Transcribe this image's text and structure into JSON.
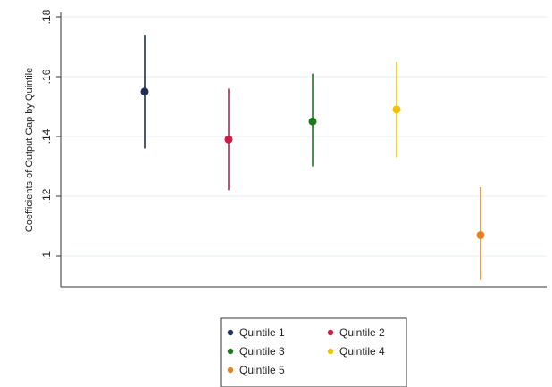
{
  "chart_data": {
    "type": "scatter",
    "title": "",
    "xlabel": "",
    "ylabel": "Coefficients of Output Gap by Quintile",
    "ylim": [
      0.09,
      0.18
    ],
    "yticks": [
      0.1,
      0.12,
      0.14,
      0.16,
      0.18
    ],
    "ytick_labels": [
      ".1",
      ".12",
      ".14",
      ".16",
      ".18"
    ],
    "grid": true,
    "legend_position": "bottom",
    "series": [
      {
        "name": "Quintile 1",
        "x": 1,
        "y": 0.155,
        "lower": 0.136,
        "upper": 0.174,
        "color": "#1f2d5c"
      },
      {
        "name": "Quintile 2",
        "x": 2,
        "y": 0.139,
        "lower": 0.122,
        "upper": 0.156,
        "color": "#d01c45"
      },
      {
        "name": "Quintile 3",
        "x": 3,
        "y": 0.145,
        "lower": 0.13,
        "upper": 0.161,
        "color": "#1a7a1a"
      },
      {
        "name": "Quintile 4",
        "x": 4,
        "y": 0.149,
        "lower": 0.133,
        "upper": 0.165,
        "color": "#f2c500"
      },
      {
        "name": "Quintile 5",
        "x": 5,
        "y": 0.107,
        "lower": 0.092,
        "upper": 0.123,
        "color": "#e8821e"
      }
    ]
  }
}
